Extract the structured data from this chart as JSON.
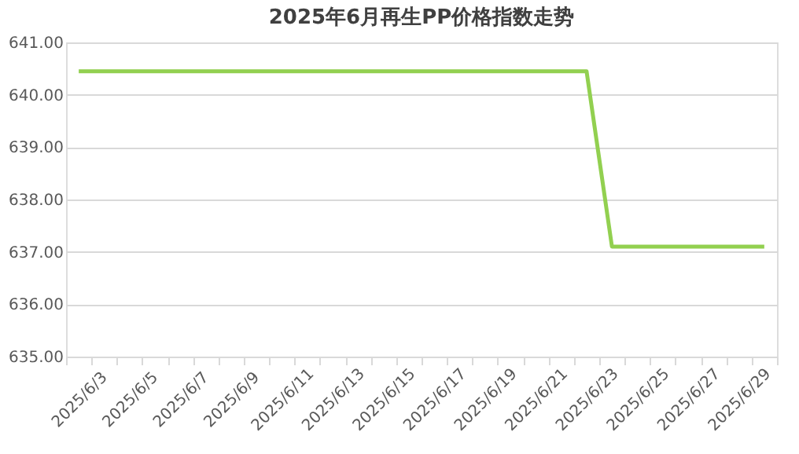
{
  "chart_data": {
    "type": "line",
    "title": "2025年6月再生PP价格指数走势",
    "categories": [
      "2025/6/3",
      null,
      "2025/6/5",
      null,
      "2025/6/7",
      null,
      "2025/6/9",
      null,
      "2025/6/11",
      null,
      "2025/6/13",
      null,
      "2025/6/15",
      null,
      "2025/6/17",
      null,
      "2025/6/19",
      null,
      "2025/6/21",
      null,
      "2025/6/23",
      null,
      "2025/6/25",
      null,
      "2025/6/27",
      null,
      "2025/6/29",
      null
    ],
    "series": [
      {
        "color": "#92d050",
        "values": [
          640.45,
          640.45,
          640.45,
          640.45,
          640.45,
          640.45,
          640.45,
          640.45,
          640.45,
          640.45,
          640.45,
          640.45,
          640.45,
          640.45,
          640.45,
          640.45,
          640.45,
          640.45,
          640.45,
          640.45,
          640.45,
          637.1,
          637.1,
          637.1,
          637.1,
          637.1,
          637.1,
          637.1
        ]
      }
    ],
    "ylim": [
      635,
      641
    ],
    "yticks": [
      {
        "value": 635,
        "label": "635.00"
      },
      {
        "value": 636,
        "label": "636.00"
      },
      {
        "value": 637,
        "label": "637.00"
      },
      {
        "value": 638,
        "label": "638.00"
      },
      {
        "value": 639,
        "label": "639.00"
      },
      {
        "value": 640,
        "label": "640.00"
      },
      {
        "value": 641,
        "label": "641.00"
      }
    ],
    "grid": "y",
    "marker": "none",
    "line_style": "solid"
  }
}
